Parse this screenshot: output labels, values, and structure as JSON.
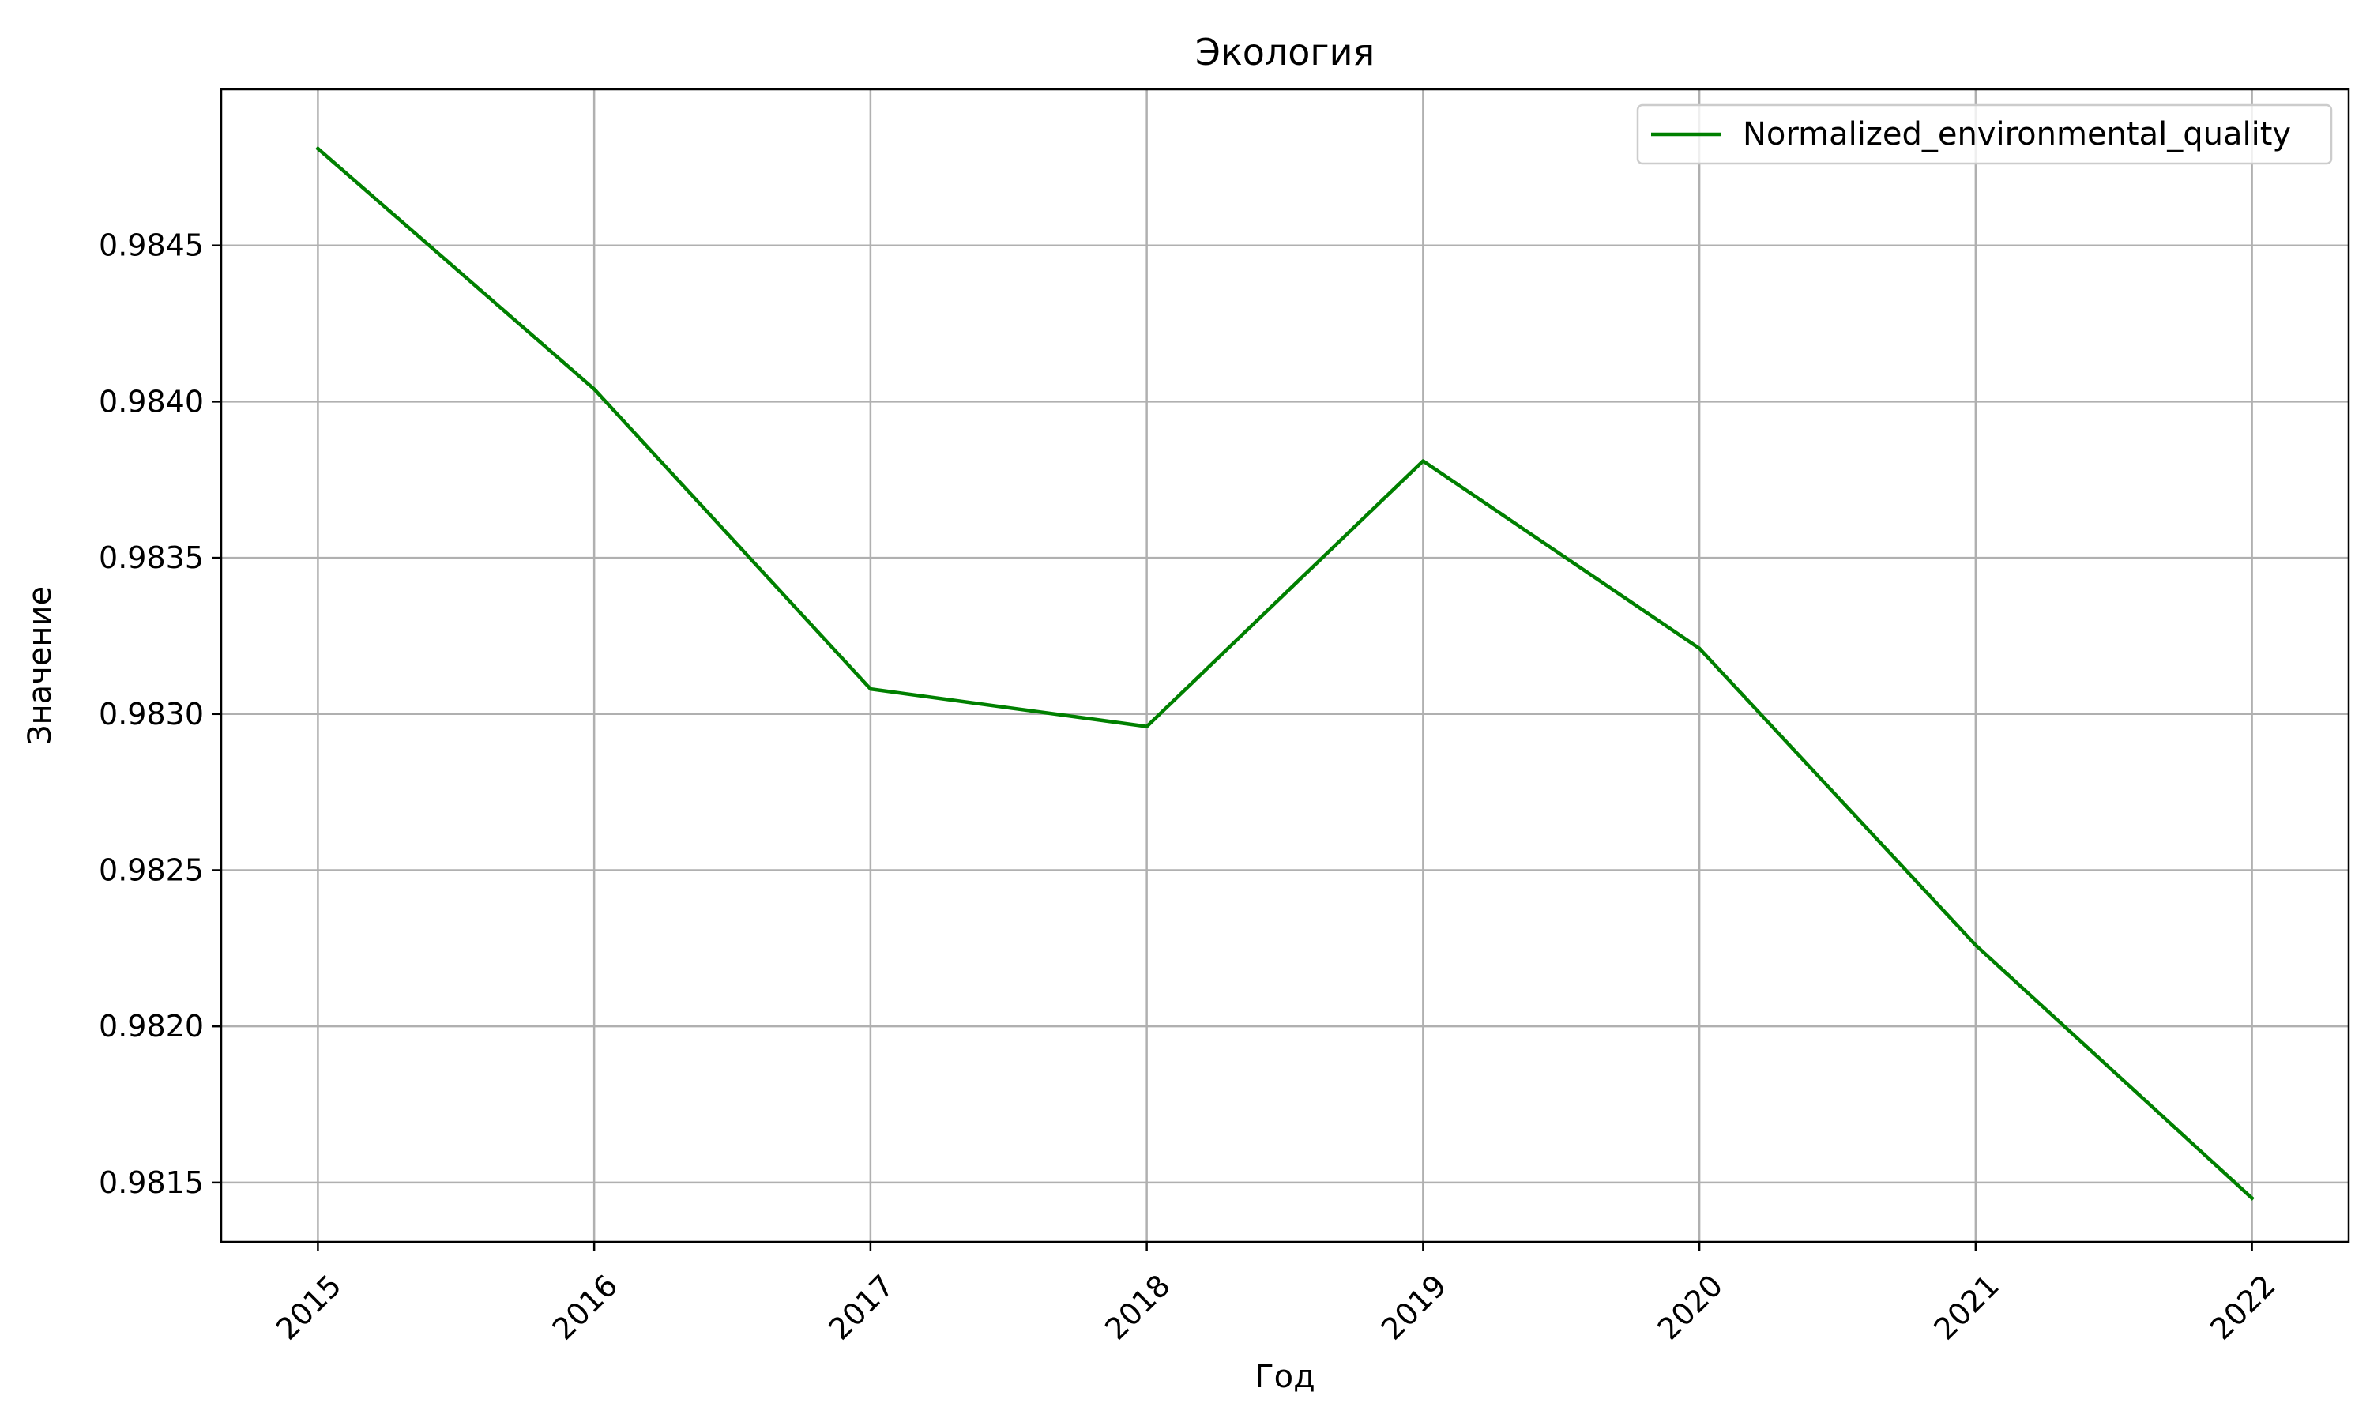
{
  "chart_data": {
    "type": "line",
    "title": "Экология",
    "xlabel": "Год",
    "ylabel": "Значение",
    "x": [
      2015,
      2016,
      2017,
      2018,
      2019,
      2020,
      2021,
      2022
    ],
    "x_tick_labels": [
      "2015",
      "2016",
      "2017",
      "2018",
      "2019",
      "2020",
      "2021",
      "2022"
    ],
    "y_ticks": [
      0.9815,
      0.982,
      0.9825,
      0.983,
      0.9835,
      0.984,
      0.9845
    ],
    "y_tick_labels": [
      "0.9815",
      "0.9820",
      "0.9825",
      "0.9830",
      "0.9835",
      "0.9840",
      "0.9845"
    ],
    "xlim": [
      2014.65,
      2022.35
    ],
    "ylim": [
      0.98131,
      0.985
    ],
    "grid": true,
    "legend_position": "upper right",
    "series": [
      {
        "name": "Normalized_environmental_quality",
        "color": "#008000",
        "values": [
          0.98481,
          0.98404,
          0.98308,
          0.98296,
          0.98381,
          0.98321,
          0.98226,
          0.98145
        ]
      }
    ]
  }
}
